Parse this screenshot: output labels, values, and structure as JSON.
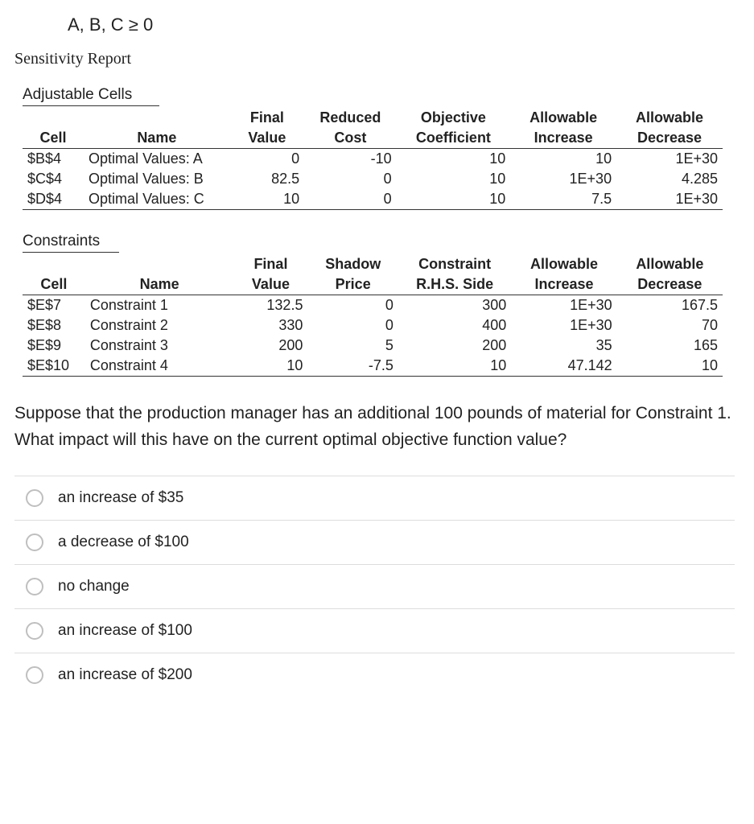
{
  "formula": "A, B, C ≥ 0",
  "report_title": "Sensitivity Report",
  "adjustable": {
    "label": "Adjustable Cells",
    "headers_top": [
      "",
      "",
      "Final",
      "Reduced",
      "Objective",
      "Allowable",
      "Allowable"
    ],
    "headers_bot": [
      "Cell",
      "Name",
      "Value",
      "Cost",
      "Coefficient",
      "Increase",
      "Decrease"
    ],
    "rows": [
      {
        "cell": "$B$4",
        "name": "Optimal Values: A",
        "v": "0",
        "a": "-10",
        "b": "10",
        "c": "10",
        "d": "1E+30"
      },
      {
        "cell": "$C$4",
        "name": "Optimal Values: B",
        "v": "82.5",
        "a": "0",
        "b": "10",
        "c": "1E+30",
        "d": "4.285"
      },
      {
        "cell": "$D$4",
        "name": "Optimal Values: C",
        "v": "10",
        "a": "0",
        "b": "10",
        "c": "7.5",
        "d": "1E+30"
      }
    ]
  },
  "constraints": {
    "label": "Constraints",
    "headers_top": [
      "",
      "",
      "Final",
      "Shadow",
      "Constraint",
      "Allowable",
      "Allowable"
    ],
    "headers_bot": [
      "Cell",
      "Name",
      "Value",
      "Price",
      "R.H.S. Side",
      "Increase",
      "Decrease"
    ],
    "rows": [
      {
        "cell": "$E$7",
        "name": "Constraint 1",
        "v": "132.5",
        "a": "0",
        "b": "300",
        "c": "1E+30",
        "d": "167.5"
      },
      {
        "cell": "$E$8",
        "name": "Constraint 2",
        "v": "330",
        "a": "0",
        "b": "400",
        "c": "1E+30",
        "d": "70"
      },
      {
        "cell": "$E$9",
        "name": "Constraint 3",
        "v": "200",
        "a": "5",
        "b": "200",
        "c": "35",
        "d": "165"
      },
      {
        "cell": "$E$10",
        "name": "Constraint 4",
        "v": "10",
        "a": "-7.5",
        "b": "10",
        "c": "47.142",
        "d": "10"
      }
    ]
  },
  "question": "Suppose that the production manager has an additional 100 pounds of material for Constraint 1. What impact will this have on the current optimal objective function value?",
  "options": [
    "an increase of $35",
    "a decrease of $100",
    "no change",
    "an increase of $100",
    "an increase of $200"
  ]
}
